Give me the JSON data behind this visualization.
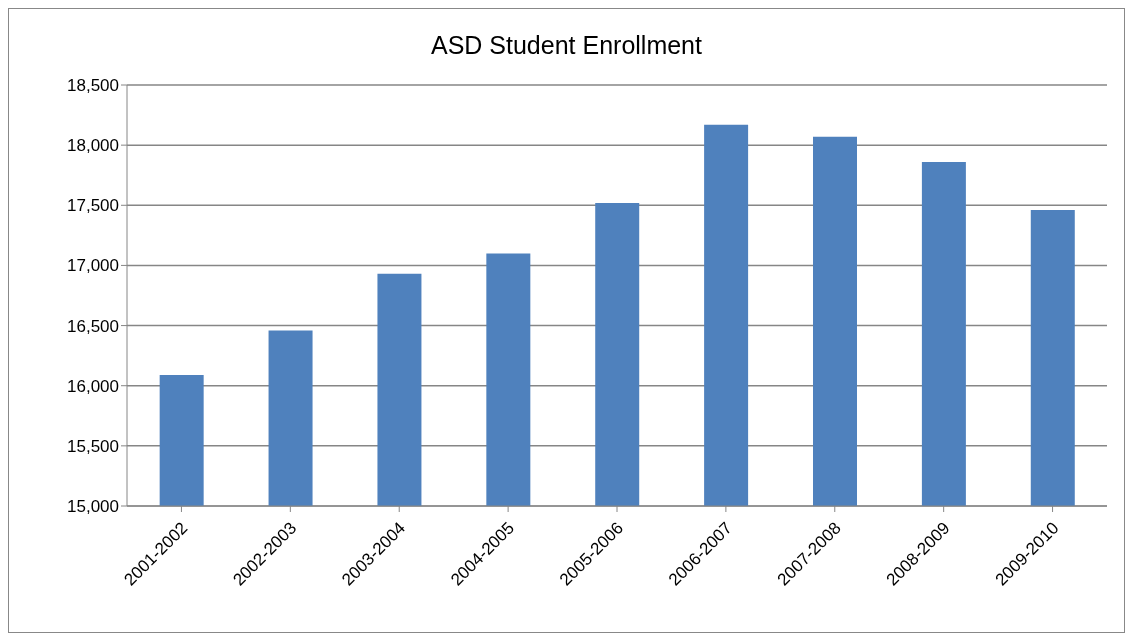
{
  "chart_data": {
    "type": "bar",
    "title": "ASD Student Enrollment",
    "categories": [
      "2001-2002",
      "2002-2003",
      "2003-2004",
      "2004-2005",
      "2005-2006",
      "2006-2007",
      "2007-2008",
      "2008-2009",
      "2009-2010"
    ],
    "values": [
      16090,
      16460,
      16930,
      17100,
      17520,
      18170,
      18070,
      17860,
      17460
    ],
    "color": "#4f81bd",
    "ylim": [
      15000,
      18500
    ],
    "yticks": [
      {
        "value": 15000,
        "label": "15,000"
      },
      {
        "value": 15500,
        "label": "15,500"
      },
      {
        "value": 16000,
        "label": "16,000"
      },
      {
        "value": 16500,
        "label": "16,500"
      },
      {
        "value": 17000,
        "label": "17,000"
      },
      {
        "value": 17500,
        "label": "17,500"
      },
      {
        "value": 18000,
        "label": "18,000"
      },
      {
        "value": 18500,
        "label": "18,500"
      }
    ],
    "grid": "y",
    "legend": false
  }
}
